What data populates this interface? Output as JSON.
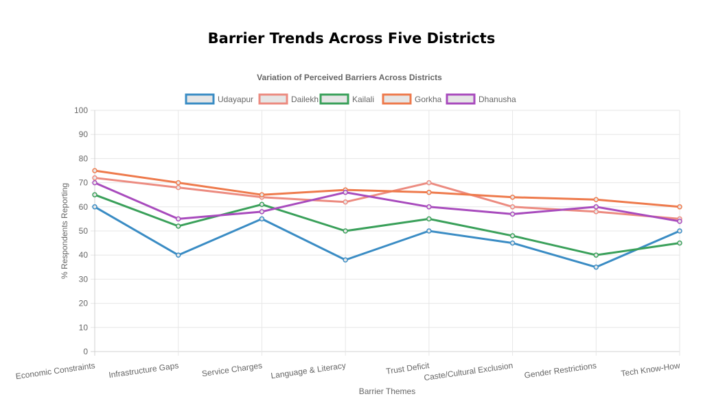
{
  "page": {
    "title": "Barrier Trends Across Five Districts"
  },
  "chart_data": {
    "type": "line",
    "title": "Variation of Perceived Barriers Across Districts",
    "xlabel": "Barrier Themes",
    "ylabel": "% Respondents Reporting",
    "ylim": [
      0,
      100
    ],
    "yticks": [
      "0",
      "10",
      "20",
      "30",
      "40",
      "50",
      "60",
      "70",
      "80",
      "90",
      "100"
    ],
    "grid": true,
    "legend_position": "top",
    "categories": [
      "Economic Constraints",
      "Infrastructure Gaps",
      "Service Charges",
      "Language & Literacy",
      "Trust Deficit",
      "Caste/Cultural Exclusion",
      "Gender Restrictions",
      "Tech Know-How"
    ],
    "series": [
      {
        "name": "Udayapur",
        "color": "#3a8cc4",
        "values": [
          60,
          40,
          55,
          38,
          50,
          45,
          35,
          50
        ]
      },
      {
        "name": "Dailekh",
        "color": "#ec8b80",
        "values": [
          72,
          68,
          64,
          62,
          70,
          60,
          58,
          55
        ]
      },
      {
        "name": "Kailali",
        "color": "#3aa05a",
        "values": [
          65,
          52,
          61,
          50,
          55,
          48,
          40,
          45
        ]
      },
      {
        "name": "Gorkha",
        "color": "#ee7a4c",
        "values": [
          75,
          70,
          65,
          67,
          66,
          64,
          63,
          60
        ]
      },
      {
        "name": "Dhanusha",
        "color": "#a84bbd",
        "values": [
          70,
          55,
          58,
          66,
          60,
          57,
          60,
          54
        ]
      }
    ]
  }
}
